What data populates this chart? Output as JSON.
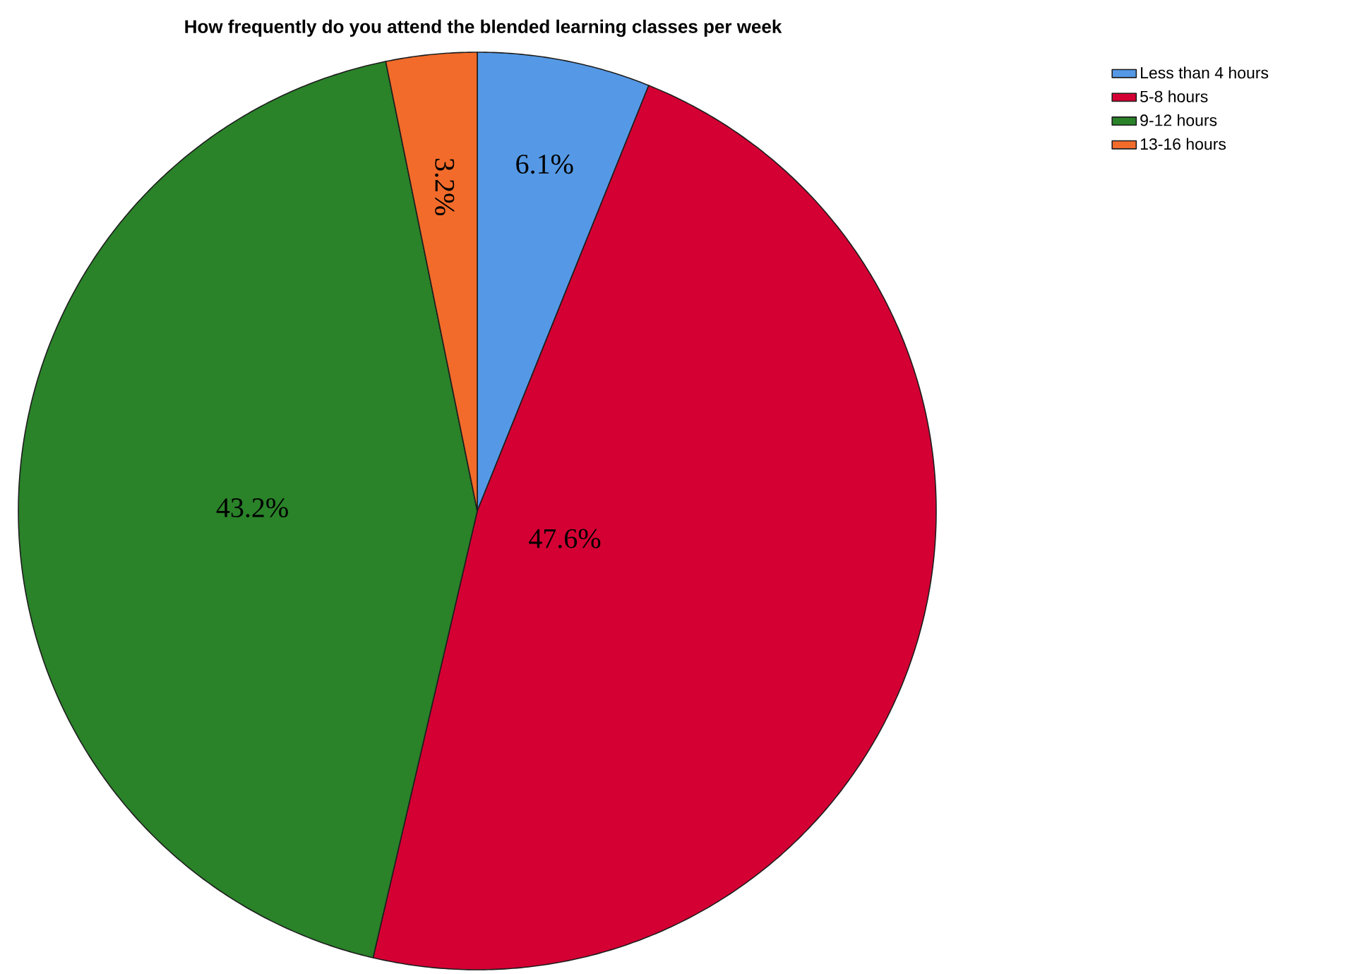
{
  "chart_data": {
    "type": "pie",
    "title": "How frequently do you attend the blended learning classes per week",
    "categories": [
      "Less than 4 hours",
      "5-8 hours",
      "9-12 hours",
      "13-16 hours"
    ],
    "values": [
      6.1,
      47.6,
      43.2,
      3.2
    ],
    "value_labels": [
      "6.1%",
      "47.6%",
      "43.2%",
      "3.2%"
    ],
    "colors": [
      "#5599e6",
      "#d40033",
      "#2a8229",
      "#f26b2a"
    ],
    "legend": "top right"
  }
}
